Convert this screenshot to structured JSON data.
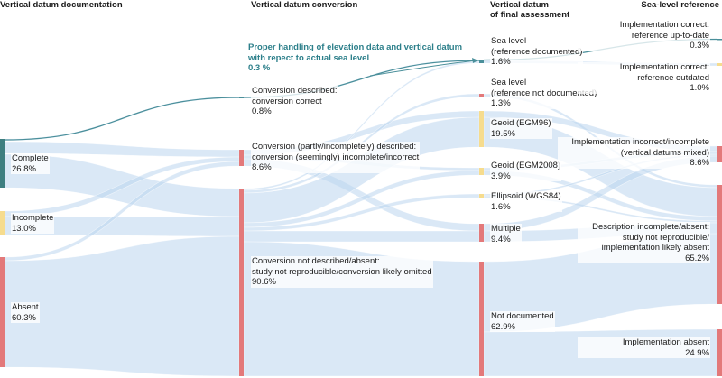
{
  "headers": {
    "col1": "Vertical datum documentation",
    "col2": "Vertical datum conversion",
    "col3": "Vertical datum\nof final assessment",
    "col4": "Sea-level reference"
  },
  "callout": {
    "text": "Proper handling of elevation data and vertical datum\nwith repect to actual sea level\n0.3 %"
  },
  "nodes": {
    "doc_complete": {
      "label": "Complete\n26.8%",
      "value": 26.8,
      "color": "#3e7f80"
    },
    "doc_incomplete": {
      "label": "Incomplete\n13.0%",
      "value": 13.0,
      "color": "#f6dc8e"
    },
    "doc_absent": {
      "label": "Absent\n60.3%",
      "value": 60.3,
      "color": "#e3797a"
    },
    "conv_correct": {
      "label": "Conversion described:\nconversion correct\n0.8%",
      "value": 0.8,
      "color": "#4a8f9a"
    },
    "conv_incomplete": {
      "label": "Conversion (partly/incompletely) described:\nconversion (seemingly) incomplete/incorrect\n8.6%",
      "value": 8.6,
      "color": "#e3797a"
    },
    "conv_absent": {
      "label": "Conversion not described/absent:\nstudy not reproducible/conversion likely omitted\n90.6%",
      "value": 90.6,
      "color": "#e3797a"
    },
    "fin_sl_doc": {
      "label": "Sea level\n(reference documented)\n1.6%",
      "value": 1.6,
      "color": "#4a8f9a"
    },
    "fin_sl_nodoc": {
      "label": "Sea level\n(reference not documented)\n1.3%",
      "value": 1.3,
      "color": "#e3797a"
    },
    "fin_egm96": {
      "label": "Geoid (EGM96)\n19.5%",
      "value": 19.5,
      "color": "#f6dc8e"
    },
    "fin_egm2008": {
      "label": "Geoid (EGM2008)\n3.9%",
      "value": 3.9,
      "color": "#f6dc8e"
    },
    "fin_wgs84": {
      "label": "Ellipsoid (WGS84)\n1.6%",
      "value": 1.6,
      "color": "#f6dc8e"
    },
    "fin_multiple": {
      "label": "Multiple\n9.4%",
      "value": 9.4,
      "color": "#e3797a"
    },
    "fin_notdoc": {
      "label": "Not documented\n62.9%",
      "value": 62.9,
      "color": "#e3797a"
    },
    "ref_correct_uptodate": {
      "label": "Implementation correct:\nreference up-to-date\n0.3%",
      "value": 0.3,
      "color": "#4a8f9a"
    },
    "ref_correct_outdated": {
      "label": "Implementation correct:\nreference outdated\n1.0%",
      "value": 1.0,
      "color": "#f6dc8e"
    },
    "ref_incorrect": {
      "label": "Implementation incorrect/incomplete\n(vertical datums mixed)\n8.6%",
      "value": 8.6,
      "color": "#e3797a"
    },
    "ref_absent_desc": {
      "label": "Description incomplete/absent:\nstudy not reproducible/\nimplementation likely absent\n65.2%",
      "value": 65.2,
      "color": "#e3797a"
    },
    "ref_absent": {
      "label": "Implementation absent\n24.9%",
      "value": 24.9,
      "color": "#e3797a"
    }
  },
  "colors": {
    "flow": "#bcd5ee",
    "highlight_flow": "#4a8f9a",
    "callout": "#2c7f8a"
  }
}
